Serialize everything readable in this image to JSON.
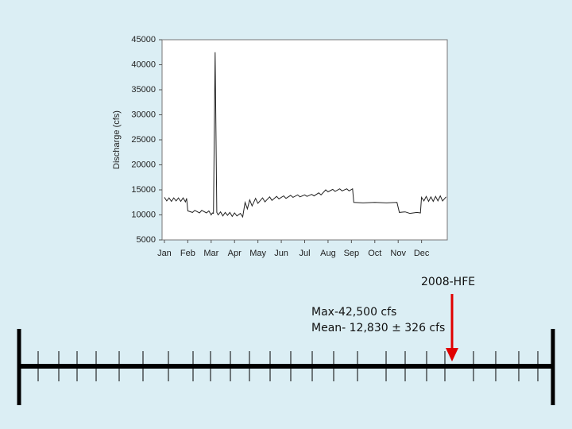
{
  "chart_data": {
    "type": "line",
    "ylabel": "Discharge (cfs)",
    "x": [
      0.0,
      0.1,
      0.2,
      0.3,
      0.4,
      0.5,
      0.6,
      0.7,
      0.8,
      0.9,
      0.95,
      1.0,
      1.2,
      1.3,
      1.5,
      1.6,
      1.8,
      1.9,
      2.0,
      2.05,
      2.1,
      2.17,
      2.24,
      2.3,
      2.4,
      2.5,
      2.6,
      2.7,
      2.8,
      2.9,
      3.0,
      3.1,
      3.25,
      3.35,
      3.45,
      3.55,
      3.65,
      3.75,
      3.9,
      4.0,
      4.2,
      4.3,
      4.5,
      4.6,
      4.8,
      4.9,
      5.1,
      5.2,
      5.4,
      5.5,
      5.7,
      5.8,
      6.0,
      6.1,
      6.3,
      6.4,
      6.6,
      6.7,
      6.9,
      7.0,
      7.2,
      7.3,
      7.5,
      7.6,
      7.8,
      7.9,
      8.05,
      8.1,
      8.5,
      9.0,
      9.5,
      9.95,
      10.0,
      10.05,
      10.3,
      10.5,
      10.8,
      10.95,
      11.0,
      11.1,
      11.2,
      11.3,
      11.4,
      11.5,
      11.6,
      11.7,
      11.8,
      11.9,
      12.05
    ],
    "series": [
      {
        "color": "#222222",
        "values": [
          13500,
          12800,
          13400,
          12700,
          13400,
          12800,
          13400,
          12700,
          13400,
          12600,
          13300,
          10800,
          10500,
          10900,
          10400,
          10900,
          10400,
          10800,
          10000,
          10400,
          10300,
          42500,
          10500,
          10000,
          10600,
          9800,
          10500,
          9900,
          10500,
          9700,
          10400,
          9800,
          10300,
          9600,
          12500,
          11200,
          13000,
          11800,
          13300,
          12300,
          13400,
          12600,
          13600,
          12900,
          13700,
          13200,
          13800,
          13300,
          13900,
          13500,
          14000,
          13600,
          14000,
          13700,
          14100,
          13800,
          14400,
          14000,
          15000,
          14600,
          15100,
          14700,
          15200,
          14800,
          15200,
          14800,
          15200,
          12500,
          12400,
          12500,
          12400,
          12500,
          11500,
          10500,
          10600,
          10300,
          10500,
          10400,
          13500,
          12800,
          13700,
          12700,
          13600,
          12700,
          13700,
          12800,
          13800,
          12800,
          13600
        ]
      }
    ],
    "xlim": [
      -0.1,
      12.1
    ],
    "xticks": [
      {
        "value": 0,
        "label": "Jan"
      },
      {
        "value": 1,
        "label": "Feb"
      },
      {
        "value": 2,
        "label": "Mar"
      },
      {
        "value": 3,
        "label": "Apr"
      },
      {
        "value": 4,
        "label": "May"
      },
      {
        "value": 5,
        "label": "Jun"
      },
      {
        "value": 6,
        "label": "Jul"
      },
      {
        "value": 7,
        "label": "Aug"
      },
      {
        "value": 8,
        "label": "Sep"
      },
      {
        "value": 9,
        "label": "Oct"
      },
      {
        "value": 10,
        "label": "Nov"
      },
      {
        "value": 11,
        "label": "Dec"
      }
    ],
    "ylim": [
      5000,
      45000
    ],
    "yticks": [
      5000,
      10000,
      15000,
      20000,
      25000,
      30000,
      35000,
      40000,
      45000
    ]
  },
  "annotations": {
    "event": "2008-HFE",
    "max": "Max-42,500 cfs",
    "mean": "Mean- 12,830 ± 326 cfs"
  }
}
